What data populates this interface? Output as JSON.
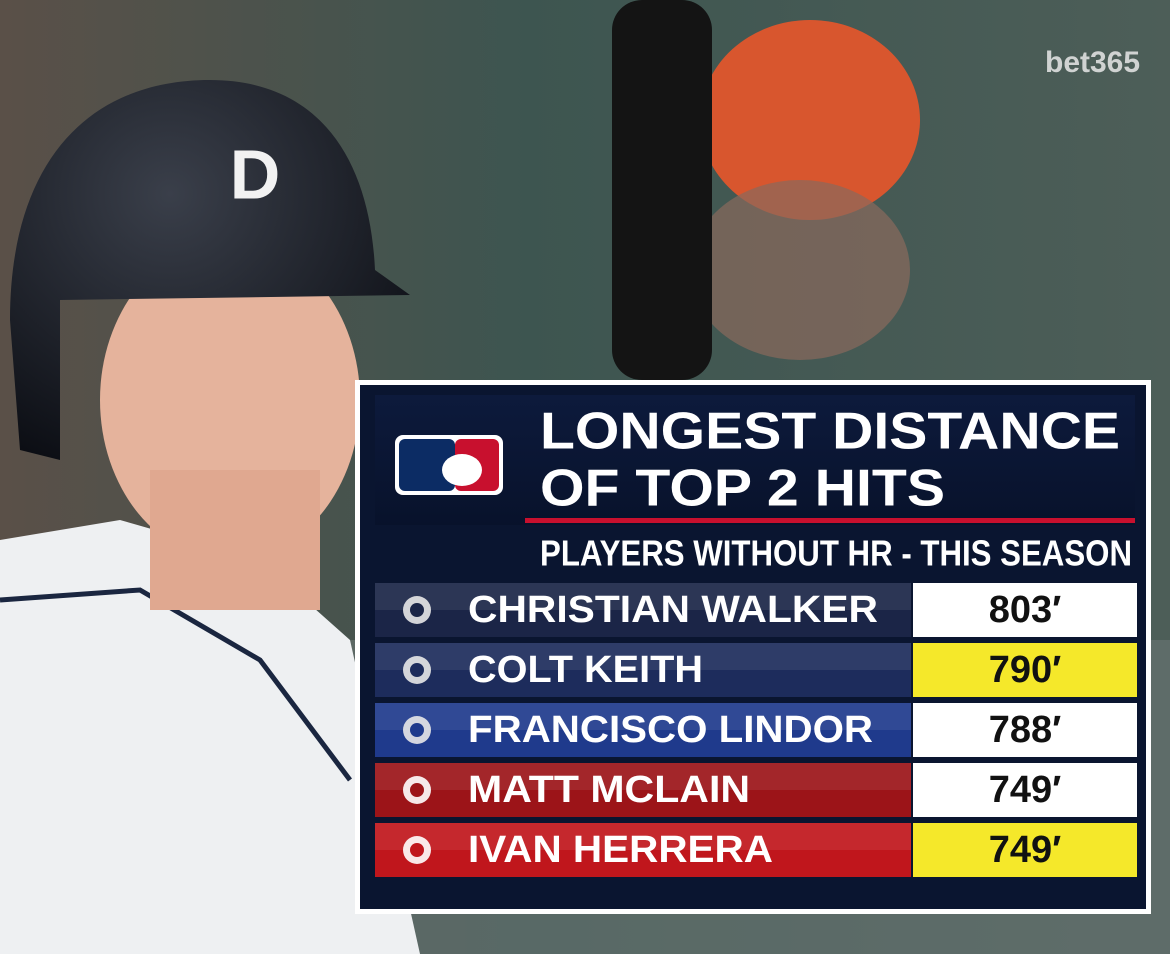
{
  "watermark": "bet365",
  "graphic": {
    "title_lines": [
      "LONGEST DISTANCE",
      "OF TOP 2 HITS"
    ],
    "subtitle": "PLAYERS WITHOUT HR - THIS SEASON",
    "rows": [
      {
        "name": "CHRISTIAN WALKER",
        "distance": "803′",
        "color": "#1b2547",
        "highlight": false
      },
      {
        "name": "COLT KEITH",
        "distance": "790′",
        "color": "#1d2c5c",
        "highlight": true
      },
      {
        "name": "FRANCISCO LINDOR",
        "distance": "788′",
        "color": "#1f3a8c",
        "highlight": false
      },
      {
        "name": "MATT MCLAIN",
        "distance": "749′",
        "color": "#9c1418",
        "highlight": false
      },
      {
        "name": "IVAN HERRERA",
        "distance": "749′",
        "color": "#c0161c",
        "highlight": true
      }
    ]
  }
}
